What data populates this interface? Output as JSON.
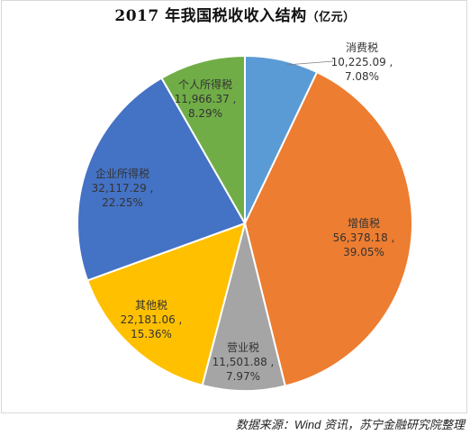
{
  "chart_data": {
    "type": "pie",
    "title": "2017 年我国税收收入结构",
    "unit": "（亿元）",
    "slices": [
      {
        "name": "消费税",
        "value_label": "10,225.09 ,",
        "value": 10225.09,
        "percent_label": "7.08%",
        "percent": 7.08,
        "color": "#5b9bd5"
      },
      {
        "name": "增值税",
        "value_label": "56,378.18 ,",
        "value": 56378.18,
        "percent_label": "39.05%",
        "percent": 39.05,
        "color": "#ed7d31"
      },
      {
        "name": "营业税",
        "value_label": "11,501.88 ,",
        "value": 11501.88,
        "percent_label": "7.97%",
        "percent": 7.97,
        "color": "#a5a5a5"
      },
      {
        "name": "其他税",
        "value_label": "22,181.06 ,",
        "value": 22181.06,
        "percent_label": "15.36%",
        "percent": 15.36,
        "color": "#ffc000"
      },
      {
        "name": "企业所得税",
        "value_label": "32,117.29 ,",
        "value": 32117.29,
        "percent_label": "22.25%",
        "percent": 22.25,
        "color": "#4472c4"
      },
      {
        "name": "个人所得税",
        "value_label": "11,966.37 ,",
        "value": 11966.37,
        "percent_label": "8.29%",
        "percent": 8.29,
        "color": "#70ad47"
      }
    ]
  },
  "source": "数据来源：Wind 资讯，苏宁金融研究院整理"
}
